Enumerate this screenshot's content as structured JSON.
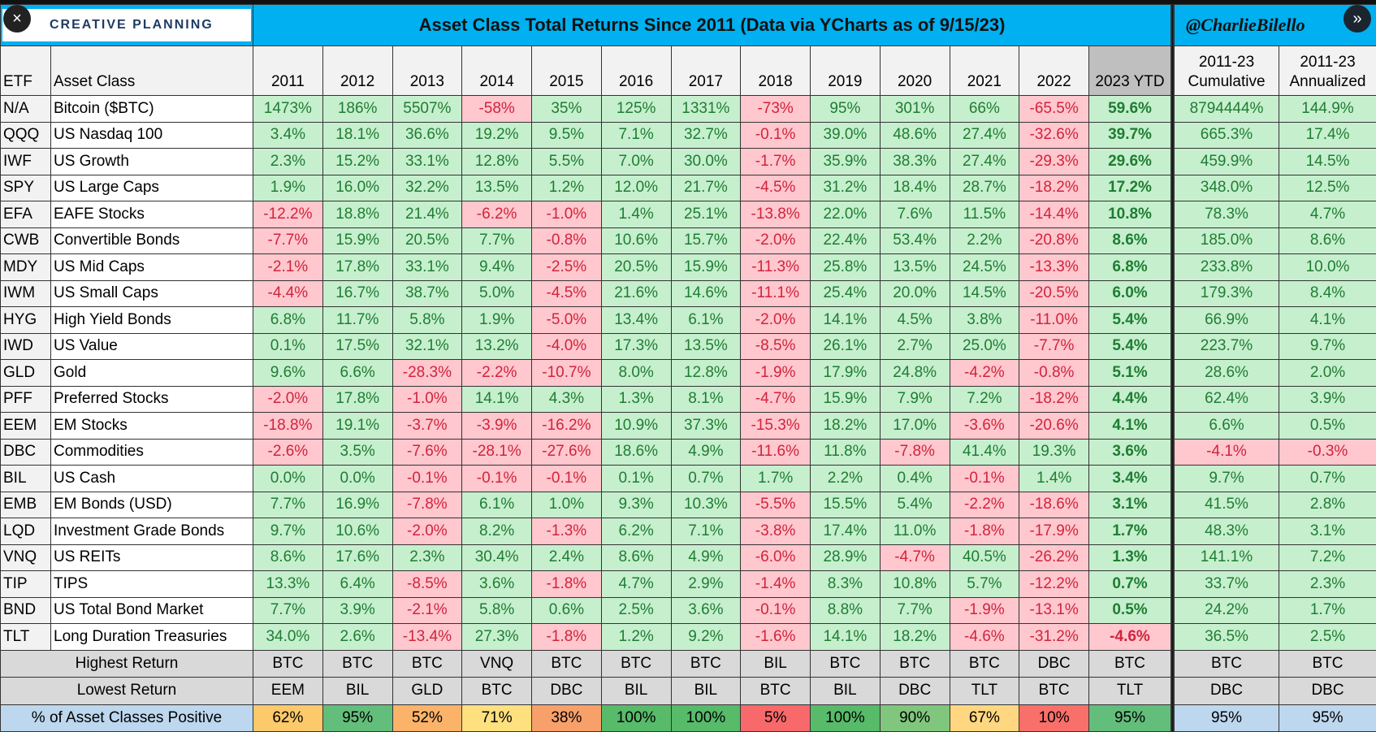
{
  "overlay": {
    "close_icon": "×",
    "next_icon": "»"
  },
  "logo_text": "CREATIVE PLANNING",
  "chart_data": {
    "type": "table",
    "title": "Asset Class Total Returns Since 2011 (Data via YCharts as of 9/15/23)",
    "handle": "@CharlieBilello",
    "headers": {
      "etf": "ETF",
      "asset_class": "Asset Class",
      "years": [
        "2011",
        "2012",
        "2013",
        "2014",
        "2015",
        "2016",
        "2017",
        "2018",
        "2019",
        "2020",
        "2021",
        "2022",
        "2023 YTD"
      ],
      "cumulative": [
        "2011-23",
        "Cumulative"
      ],
      "annualized": [
        "2011-23",
        "Annualized"
      ]
    },
    "rows": [
      {
        "etf": "N/A",
        "name": "Bitcoin ($BTC)",
        "values": [
          "1473%",
          "186%",
          "5507%",
          "-58%",
          "35%",
          "125%",
          "1331%",
          "-73%",
          "95%",
          "301%",
          "66%",
          "-65.5%",
          "59.6%"
        ],
        "cumulative": "8794444%",
        "annualized": "144.9%"
      },
      {
        "etf": "QQQ",
        "name": "US Nasdaq 100",
        "values": [
          "3.4%",
          "18.1%",
          "36.6%",
          "19.2%",
          "9.5%",
          "7.1%",
          "32.7%",
          "-0.1%",
          "39.0%",
          "48.6%",
          "27.4%",
          "-32.6%",
          "39.7%"
        ],
        "cumulative": "665.3%",
        "annualized": "17.4%"
      },
      {
        "etf": "IWF",
        "name": "US Growth",
        "values": [
          "2.3%",
          "15.2%",
          "33.1%",
          "12.8%",
          "5.5%",
          "7.0%",
          "30.0%",
          "-1.7%",
          "35.9%",
          "38.3%",
          "27.4%",
          "-29.3%",
          "29.6%"
        ],
        "cumulative": "459.9%",
        "annualized": "14.5%"
      },
      {
        "etf": "SPY",
        "name": "US Large Caps",
        "values": [
          "1.9%",
          "16.0%",
          "32.2%",
          "13.5%",
          "1.2%",
          "12.0%",
          "21.7%",
          "-4.5%",
          "31.2%",
          "18.4%",
          "28.7%",
          "-18.2%",
          "17.2%"
        ],
        "cumulative": "348.0%",
        "annualized": "12.5%"
      },
      {
        "etf": "EFA",
        "name": "EAFE Stocks",
        "values": [
          "-12.2%",
          "18.8%",
          "21.4%",
          "-6.2%",
          "-1.0%",
          "1.4%",
          "25.1%",
          "-13.8%",
          "22.0%",
          "7.6%",
          "11.5%",
          "-14.4%",
          "10.8%"
        ],
        "cumulative": "78.3%",
        "annualized": "4.7%"
      },
      {
        "etf": "CWB",
        "name": "Convertible Bonds",
        "values": [
          "-7.7%",
          "15.9%",
          "20.5%",
          "7.7%",
          "-0.8%",
          "10.6%",
          "15.7%",
          "-2.0%",
          "22.4%",
          "53.4%",
          "2.2%",
          "-20.8%",
          "8.6%"
        ],
        "cumulative": "185.0%",
        "annualized": "8.6%"
      },
      {
        "etf": "MDY",
        "name": "US Mid Caps",
        "values": [
          "-2.1%",
          "17.8%",
          "33.1%",
          "9.4%",
          "-2.5%",
          "20.5%",
          "15.9%",
          "-11.3%",
          "25.8%",
          "13.5%",
          "24.5%",
          "-13.3%",
          "6.8%"
        ],
        "cumulative": "233.8%",
        "annualized": "10.0%"
      },
      {
        "etf": "IWM",
        "name": "US Small Caps",
        "values": [
          "-4.4%",
          "16.7%",
          "38.7%",
          "5.0%",
          "-4.5%",
          "21.6%",
          "14.6%",
          "-11.1%",
          "25.4%",
          "20.0%",
          "14.5%",
          "-20.5%",
          "6.0%"
        ],
        "cumulative": "179.3%",
        "annualized": "8.4%"
      },
      {
        "etf": "HYG",
        "name": "High Yield Bonds",
        "values": [
          "6.8%",
          "11.7%",
          "5.8%",
          "1.9%",
          "-5.0%",
          "13.4%",
          "6.1%",
          "-2.0%",
          "14.1%",
          "4.5%",
          "3.8%",
          "-11.0%",
          "5.4%"
        ],
        "cumulative": "66.9%",
        "annualized": "4.1%"
      },
      {
        "etf": "IWD",
        "name": "US Value",
        "values": [
          "0.1%",
          "17.5%",
          "32.1%",
          "13.2%",
          "-4.0%",
          "17.3%",
          "13.5%",
          "-8.5%",
          "26.1%",
          "2.7%",
          "25.0%",
          "-7.7%",
          "5.4%"
        ],
        "cumulative": "223.7%",
        "annualized": "9.7%"
      },
      {
        "etf": "GLD",
        "name": "Gold",
        "values": [
          "9.6%",
          "6.6%",
          "-28.3%",
          "-2.2%",
          "-10.7%",
          "8.0%",
          "12.8%",
          "-1.9%",
          "17.9%",
          "24.8%",
          "-4.2%",
          "-0.8%",
          "5.1%"
        ],
        "cumulative": "28.6%",
        "annualized": "2.0%"
      },
      {
        "etf": "PFF",
        "name": "Preferred Stocks",
        "values": [
          "-2.0%",
          "17.8%",
          "-1.0%",
          "14.1%",
          "4.3%",
          "1.3%",
          "8.1%",
          "-4.7%",
          "15.9%",
          "7.9%",
          "7.2%",
          "-18.2%",
          "4.4%"
        ],
        "cumulative": "62.4%",
        "annualized": "3.9%"
      },
      {
        "etf": "EEM",
        "name": "EM Stocks",
        "values": [
          "-18.8%",
          "19.1%",
          "-3.7%",
          "-3.9%",
          "-16.2%",
          "10.9%",
          "37.3%",
          "-15.3%",
          "18.2%",
          "17.0%",
          "-3.6%",
          "-20.6%",
          "4.1%"
        ],
        "cumulative": "6.6%",
        "annualized": "0.5%"
      },
      {
        "etf": "DBC",
        "name": "Commodities",
        "values": [
          "-2.6%",
          "3.5%",
          "-7.6%",
          "-28.1%",
          "-27.6%",
          "18.6%",
          "4.9%",
          "-11.6%",
          "11.8%",
          "-7.8%",
          "41.4%",
          "19.3%",
          "3.6%"
        ],
        "cumulative": "-4.1%",
        "annualized": "-0.3%"
      },
      {
        "etf": "BIL",
        "name": "US Cash",
        "values": [
          "0.0%",
          "0.0%",
          "-0.1%",
          "-0.1%",
          "-0.1%",
          "0.1%",
          "0.7%",
          "1.7%",
          "2.2%",
          "0.4%",
          "-0.1%",
          "1.4%",
          "3.4%"
        ],
        "cumulative": "9.7%",
        "annualized": "0.7%"
      },
      {
        "etf": "EMB",
        "name": "EM Bonds (USD)",
        "values": [
          "7.7%",
          "16.9%",
          "-7.8%",
          "6.1%",
          "1.0%",
          "9.3%",
          "10.3%",
          "-5.5%",
          "15.5%",
          "5.4%",
          "-2.2%",
          "-18.6%",
          "3.1%"
        ],
        "cumulative": "41.5%",
        "annualized": "2.8%"
      },
      {
        "etf": "LQD",
        "name": "Investment Grade Bonds",
        "values": [
          "9.7%",
          "10.6%",
          "-2.0%",
          "8.2%",
          "-1.3%",
          "6.2%",
          "7.1%",
          "-3.8%",
          "17.4%",
          "11.0%",
          "-1.8%",
          "-17.9%",
          "1.7%"
        ],
        "cumulative": "48.3%",
        "annualized": "3.1%"
      },
      {
        "etf": "VNQ",
        "name": "US REITs",
        "values": [
          "8.6%",
          "17.6%",
          "2.3%",
          "30.4%",
          "2.4%",
          "8.6%",
          "4.9%",
          "-6.0%",
          "28.9%",
          "-4.7%",
          "40.5%",
          "-26.2%",
          "1.3%"
        ],
        "cumulative": "141.1%",
        "annualized": "7.2%"
      },
      {
        "etf": "TIP",
        "name": "TIPS",
        "values": [
          "13.3%",
          "6.4%",
          "-8.5%",
          "3.6%",
          "-1.8%",
          "4.7%",
          "2.9%",
          "-1.4%",
          "8.3%",
          "10.8%",
          "5.7%",
          "-12.2%",
          "0.7%"
        ],
        "cumulative": "33.7%",
        "annualized": "2.3%"
      },
      {
        "etf": "BND",
        "name": "US Total Bond Market",
        "values": [
          "7.7%",
          "3.9%",
          "-2.1%",
          "5.8%",
          "0.6%",
          "2.5%",
          "3.6%",
          "-0.1%",
          "8.8%",
          "7.7%",
          "-1.9%",
          "-13.1%",
          "0.5%"
        ],
        "cumulative": "24.2%",
        "annualized": "1.7%"
      },
      {
        "etf": "TLT",
        "name": "Long Duration Treasuries",
        "values": [
          "34.0%",
          "2.6%",
          "-13.4%",
          "27.3%",
          "-1.8%",
          "1.2%",
          "9.2%",
          "-1.6%",
          "14.1%",
          "18.2%",
          "-4.6%",
          "-31.2%",
          "-4.6%"
        ],
        "cumulative": "36.5%",
        "annualized": "2.5%"
      }
    ],
    "summary": [
      {
        "label": "Highest Return",
        "values": [
          "BTC",
          "BTC",
          "BTC",
          "VNQ",
          "BTC",
          "BTC",
          "BTC",
          "BIL",
          "BTC",
          "BTC",
          "BTC",
          "DBC",
          "BTC",
          "BTC",
          "BTC"
        ]
      },
      {
        "label": "Lowest Return",
        "values": [
          "EEM",
          "BIL",
          "GLD",
          "BTC",
          "DBC",
          "BIL",
          "BIL",
          "BTC",
          "BIL",
          "DBC",
          "TLT",
          "BTC",
          "TLT",
          "DBC",
          "DBC"
        ]
      }
    ],
    "positive": {
      "label": "% of Asset Classes Positive",
      "values": [
        "62%",
        "95%",
        "52%",
        "71%",
        "38%",
        "100%",
        "100%",
        "5%",
        "100%",
        "90%",
        "67%",
        "10%",
        "95%",
        "95%",
        "95%"
      ],
      "colors": [
        "#fcc96b",
        "#63be7b",
        "#fbb36a",
        "#ffe07f",
        "#f8a06a",
        "#57bb6a",
        "#57bb6a",
        "#f8696b",
        "#57bb6a",
        "#80c77d",
        "#fed780",
        "#f87069",
        "#63be7b",
        "#bdd7ee",
        "#bdd7ee"
      ]
    },
    "colors": {
      "header": "#00b0f0",
      "positive_cell": "#c6efce",
      "positive_text": "#1e7d32",
      "negative_cell": "#ffc7ce",
      "negative_text": "#d0243c"
    }
  }
}
